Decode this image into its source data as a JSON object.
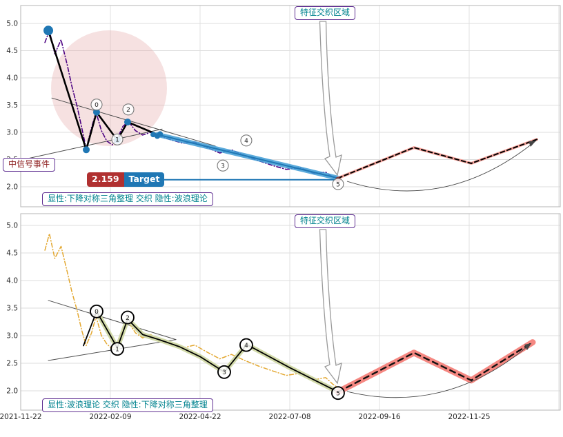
{
  "chart_data": [
    {
      "type": "line",
      "panel": "top",
      "zone_label": "特征交织区域",
      "signal_label": "中信号事件",
      "target": {
        "value": "2.159",
        "label": "Target",
        "price": 2.159
      },
      "caption": "显性:下降对称三角整理 交织 隐性:波浪理论",
      "ylim": [
        1.63,
        5.33
      ],
      "y_ticks": [
        2.0,
        2.5,
        3.0,
        3.5,
        4.0,
        4.5,
        5.0
      ],
      "x_tick_labels": [
        "2021-11-22",
        "2022-02-09",
        "2022-04-22",
        "2022-07-08",
        "2022-09-16",
        "2022-11-25"
      ],
      "show_x_labels": false,
      "grid": true,
      "series": [
        {
          "name": "trendline-upper",
          "color": "#4d4d4d",
          "width": 1,
          "points": [
            [
              0.346,
              3.63
            ],
            [
              2.169,
              2.75
            ]
          ]
        },
        {
          "name": "trendline-lower",
          "color": "#4d4d4d",
          "width": 1,
          "points": [
            [
              0.0,
              2.49
            ],
            [
              1.577,
              3.06
            ]
          ]
        },
        {
          "name": "price-dashdot",
          "color": "#4B0082",
          "width": 1.6,
          "dash": "6 3 1 3",
          "points": [
            [
              0.27,
              4.65
            ],
            [
              0.32,
              4.87
            ],
            [
              0.38,
              4.44
            ],
            [
              0.45,
              4.7
            ],
            [
              0.52,
              4.23
            ],
            [
              0.57,
              3.85
            ],
            [
              0.63,
              3.47
            ],
            [
              0.68,
              3.09
            ],
            [
              0.73,
              2.7
            ],
            [
              0.79,
              3.09
            ],
            [
              0.84,
              3.37
            ],
            [
              0.9,
              3.03
            ],
            [
              0.96,
              2.84
            ],
            [
              1.02,
              2.77
            ],
            [
              1.08,
              2.9
            ],
            [
              1.14,
              3.11
            ],
            [
              1.2,
              3.2
            ],
            [
              1.28,
              3.03
            ],
            [
              1.36,
              2.95
            ],
            [
              1.45,
              3.0
            ],
            [
              1.54,
              2.94
            ],
            [
              1.68,
              2.86
            ],
            [
              1.81,
              2.8
            ],
            [
              1.94,
              2.82
            ],
            [
              2.08,
              2.72
            ],
            [
              2.22,
              2.62
            ],
            [
              2.35,
              2.68
            ],
            [
              2.5,
              2.57
            ],
            [
              2.65,
              2.48
            ],
            [
              2.81,
              2.39
            ],
            [
              2.96,
              2.32
            ],
            [
              3.12,
              2.35
            ],
            [
              3.27,
              2.24
            ],
            [
              3.4,
              2.27
            ],
            [
              3.48,
              2.18
            ],
            [
              3.55,
              2.13
            ]
          ]
        },
        {
          "name": "wave-line",
          "color": "#000000",
          "width": 2.6,
          "points": [
            [
              0.308,
              4.87
            ],
            [
              0.731,
              2.68
            ],
            [
              0.846,
              3.37
            ],
            [
              1.077,
              2.86
            ],
            [
              1.192,
              3.19
            ],
            [
              1.523,
              2.96
            ]
          ]
        },
        {
          "name": "breakout-band",
          "color": "#3D9BD5",
          "width": 7,
          "opacity": 0.85,
          "points": [
            [
              1.523,
              2.96
            ],
            [
              3.538,
              2.16
            ]
          ]
        },
        {
          "name": "breakout-core",
          "color": "#1F77B4",
          "width": 2,
          "points": [
            [
              1.523,
              2.96
            ],
            [
              3.538,
              2.16
            ]
          ]
        },
        {
          "name": "target-line",
          "color": "#1F77B4",
          "width": 2,
          "points": [
            [
              1.477,
              2.13
            ],
            [
              3.538,
              2.13
            ]
          ]
        },
        {
          "name": "forecast-band",
          "color": "#F4978E",
          "width": 4,
          "opacity": 0.9,
          "points": [
            [
              3.538,
              2.16
            ],
            [
              4.385,
              2.72
            ],
            [
              5.023,
              2.43
            ],
            [
              5.754,
              2.87
            ]
          ]
        },
        {
          "name": "forecast-dashed",
          "color": "#000000",
          "width": 2,
          "dash": "6 4",
          "points": [
            [
              3.538,
              2.16
            ],
            [
              4.385,
              2.72
            ],
            [
              5.023,
              2.43
            ],
            [
              5.754,
              2.87
            ]
          ]
        }
      ],
      "markers": [
        {
          "name": "signal-dots",
          "color": "#1F77B4",
          "points": [
            [
              0.308,
              4.87,
              7
            ],
            [
              0.731,
              2.68,
              5
            ],
            [
              0.846,
              3.37,
              5
            ],
            [
              1.077,
              2.86,
              5
            ],
            [
              1.192,
              3.19,
              5
            ],
            [
              1.477,
              2.96,
              4
            ],
            [
              1.523,
              2.93,
              4
            ],
            [
              1.554,
              2.97,
              4
            ]
          ]
        },
        {
          "name": "target-dot",
          "color": "#8B3A3A",
          "points": [
            [
              3.538,
              2.13,
              4
            ]
          ]
        }
      ],
      "wave_points": [
        {
          "label": "0",
          "u": 0.846,
          "p": 3.51
        },
        {
          "label": "1",
          "u": 1.077,
          "p": 2.87
        },
        {
          "label": "2",
          "u": 1.2,
          "p": 3.42
        },
        {
          "label": "3",
          "u": 2.254,
          "p": 2.39
        },
        {
          "label": "4",
          "u": 2.515,
          "p": 2.85
        },
        {
          "label": "5",
          "u": 3.538,
          "p": 2.05
        }
      ]
    },
    {
      "type": "line",
      "panel": "bottom",
      "zone_label": "特征交织区域",
      "caption": "显性:波浪理论 交织 隐性:下降对称三角整理",
      "ylim": [
        1.65,
        5.21
      ],
      "y_ticks": [
        2.0,
        2.5,
        3.0,
        3.5,
        4.0,
        4.5,
        5.0
      ],
      "x_tick_labels": [
        "2021-11-22",
        "2022-02-09",
        "2022-04-22",
        "2022-07-08",
        "2022-09-16",
        "2022-11-25"
      ],
      "show_x_labels": true,
      "grid": true,
      "series": [
        {
          "name": "trendline-upper",
          "color": "#4d4d4d",
          "width": 1,
          "points": [
            [
              0.308,
              3.64
            ],
            [
              1.731,
              2.93
            ]
          ]
        },
        {
          "name": "trendline-lower",
          "color": "#4d4d4d",
          "width": 1,
          "points": [
            [
              0.308,
              2.55
            ],
            [
              1.731,
              2.93
            ]
          ]
        },
        {
          "name": "price-dashdot",
          "color": "#E3A72F",
          "width": 1.5,
          "dash": "6 3 1 3",
          "points": [
            [
              0.27,
              4.55
            ],
            [
              0.32,
              4.85
            ],
            [
              0.38,
              4.4
            ],
            [
              0.45,
              4.62
            ],
            [
              0.52,
              4.15
            ],
            [
              0.57,
              3.8
            ],
            [
              0.63,
              3.45
            ],
            [
              0.68,
              3.1
            ],
            [
              0.73,
              2.82
            ],
            [
              0.79,
              3.05
            ],
            [
              0.84,
              3.35
            ],
            [
              0.9,
              3.0
            ],
            [
              0.96,
              2.85
            ],
            [
              1.02,
              2.76
            ],
            [
              1.08,
              2.88
            ],
            [
              1.14,
              3.1
            ],
            [
              1.2,
              3.25
            ],
            [
              1.28,
              3.05
            ],
            [
              1.36,
              2.96
            ],
            [
              1.45,
              3.02
            ],
            [
              1.54,
              2.92
            ],
            [
              1.68,
              2.85
            ],
            [
              1.81,
              2.78
            ],
            [
              1.94,
              2.83
            ],
            [
              2.08,
              2.7
            ],
            [
              2.22,
              2.58
            ],
            [
              2.35,
              2.66
            ],
            [
              2.5,
              2.55
            ],
            [
              2.65,
              2.45
            ],
            [
              2.81,
              2.36
            ],
            [
              2.96,
              2.28
            ],
            [
              3.12,
              2.32
            ],
            [
              3.27,
              2.2
            ],
            [
              3.4,
              2.24
            ],
            [
              3.48,
              2.12
            ],
            [
              3.55,
              2.04
            ]
          ]
        },
        {
          "name": "wave-highlight-band",
          "color": "#CDD6A0",
          "width": 7,
          "opacity": 0.9,
          "points": [
            [
              0.846,
              3.44
            ],
            [
              1.077,
              2.78
            ],
            [
              1.192,
              3.3
            ],
            [
              1.36,
              3.02
            ],
            [
              1.54,
              2.93
            ],
            [
              1.77,
              2.8
            ],
            [
              2.0,
              2.62
            ],
            [
              2.27,
              2.34
            ],
            [
              2.52,
              2.84
            ],
            [
              3.0,
              2.42
            ],
            [
              3.538,
              1.98
            ]
          ]
        },
        {
          "name": "wave-line",
          "color": "#000000",
          "width": 1.8,
          "points": [
            [
              0.7,
              2.82
            ],
            [
              0.846,
              3.44
            ],
            [
              1.077,
              2.78
            ],
            [
              1.192,
              3.3
            ],
            [
              1.36,
              3.02
            ],
            [
              1.54,
              2.93
            ],
            [
              1.77,
              2.8
            ],
            [
              2.0,
              2.62
            ],
            [
              2.27,
              2.34
            ],
            [
              2.52,
              2.84
            ],
            [
              3.0,
              2.42
            ],
            [
              3.538,
              1.98
            ]
          ]
        },
        {
          "name": "forecast-band",
          "color": "#F4827B",
          "width": 9,
          "opacity": 0.95,
          "points": [
            [
              3.538,
              1.98
            ],
            [
              4.385,
              2.69
            ],
            [
              5.023,
              2.19
            ],
            [
              5.708,
              2.88
            ]
          ]
        },
        {
          "name": "forecast-dashed",
          "color": "#111111",
          "width": 2.4,
          "dash": "8 6",
          "points": [
            [
              3.538,
              1.98
            ],
            [
              4.385,
              2.69
            ],
            [
              5.023,
              2.19
            ],
            [
              5.708,
              2.88
            ]
          ]
        }
      ],
      "markers": [],
      "wave_points": [
        {
          "label": "0",
          "u": 0.846,
          "p": 3.44
        },
        {
          "label": "1",
          "u": 1.077,
          "p": 2.76
        },
        {
          "label": "2",
          "u": 1.192,
          "p": 3.33
        },
        {
          "label": "3",
          "u": 2.269,
          "p": 2.34
        },
        {
          "label": "4",
          "u": 2.515,
          "p": 2.83
        },
        {
          "label": "5",
          "u": 3.538,
          "p": 1.96
        }
      ]
    }
  ]
}
